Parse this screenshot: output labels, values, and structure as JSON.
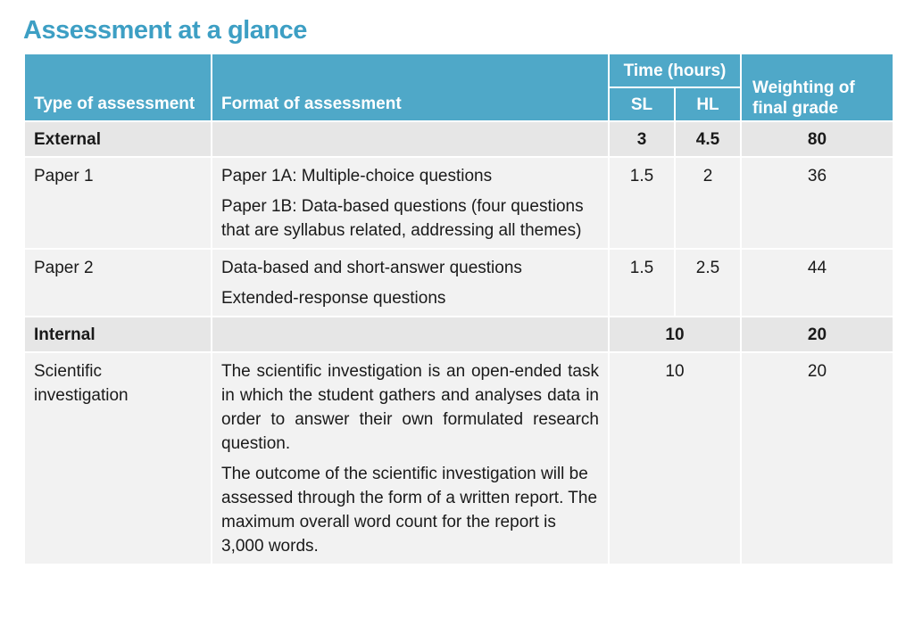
{
  "title": "Assessment at a glance",
  "header": {
    "type": "Type of assessment",
    "format": "Format of assessment",
    "time": "Time (hours)",
    "sl": "SL",
    "hl": "HL",
    "weighting": "Weighting of final grade"
  },
  "rows": {
    "external": {
      "label": "External",
      "sl": "3",
      "hl": "4.5",
      "weight": "80"
    },
    "paper1": {
      "label": "Paper 1",
      "formats": [
        "Paper 1A: Multiple-choice questions",
        "Paper 1B: Data-based questions (four questions that are syllabus related, addressing all themes)"
      ],
      "sl": "1.5",
      "hl": "2",
      "weight": "36"
    },
    "paper2": {
      "label": "Paper 2",
      "formats": [
        "Data-based and short-answer questions",
        "Extended-response questions"
      ],
      "sl": "1.5",
      "hl": "2.5",
      "weight": "44"
    },
    "internal": {
      "label": "Internal",
      "time": "10",
      "weight": "20"
    },
    "scientific": {
      "label": "Scientific investigation",
      "formats": [
        "The scientific investigation is an open-ended task in which the student gathers and analyses data in order to answer their own formulated research question.",
        "The outcome of the scientific investigation will be assessed through the form of a written report. The maximum overall word count for the report is 3,000 words."
      ],
      "time": "10",
      "weight": "20"
    }
  },
  "colors": {
    "header_bg": "#4fa8c8",
    "title": "#3d9fc4",
    "group_bg": "#e6e6e6",
    "row_bg": "#f2f2f2"
  }
}
